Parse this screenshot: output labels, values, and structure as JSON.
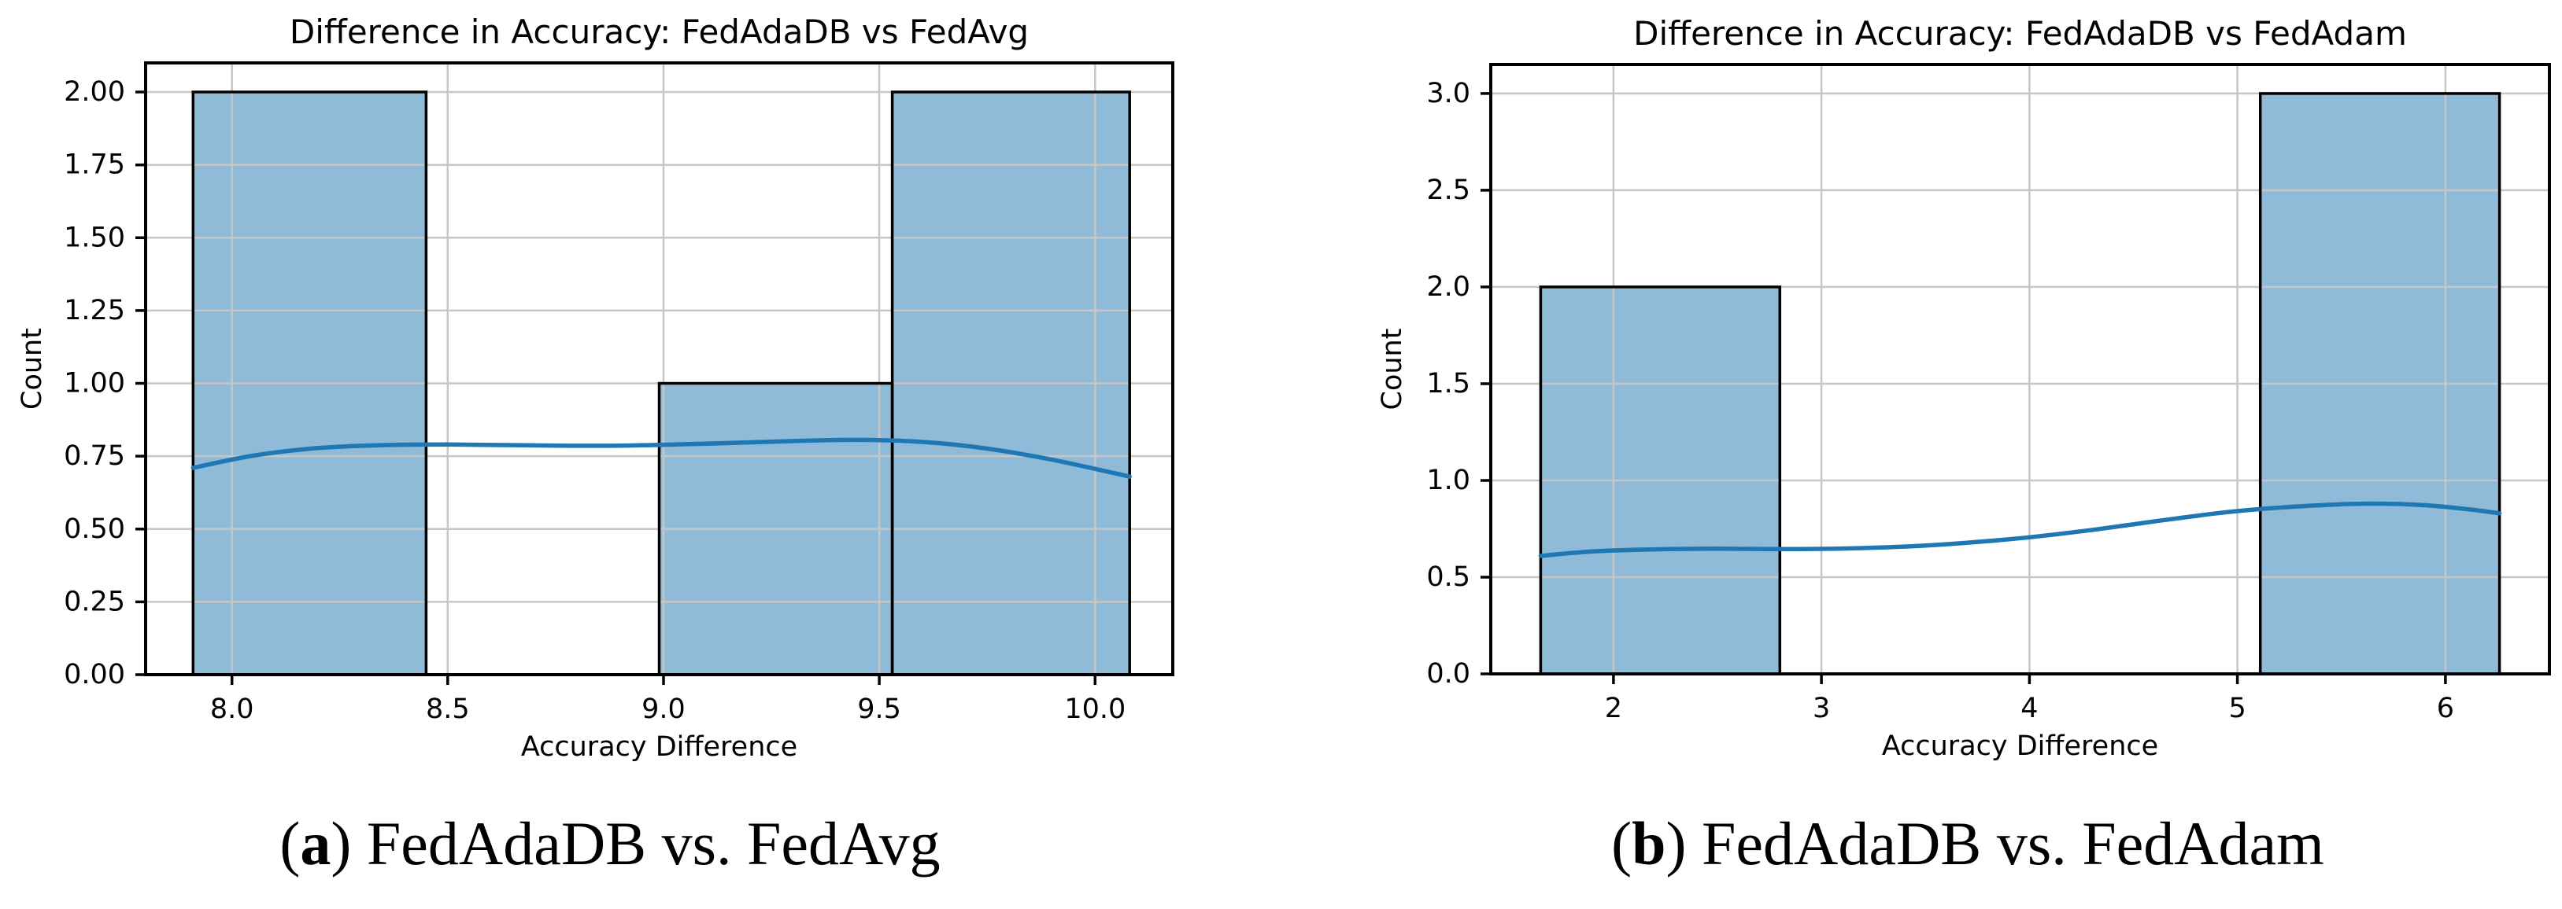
{
  "figure": {
    "captions": [
      {
        "open": "(",
        "letter": "a",
        "close": ")",
        "text": " FedAdaDB vs. FedAvg"
      },
      {
        "open": "(",
        "letter": "b",
        "close": ")",
        "text": " FedAdaDB vs. FedAdam"
      }
    ]
  },
  "colors": {
    "background": "#ffffff",
    "bar_fill_rgba": "rgba(31,119,180,0.5)",
    "bar_fill_flat": "#8fbbd9",
    "bar_edge": "#000000",
    "kde_line": "#1f77b4",
    "grid": "#c6c6c6",
    "axis": "#000000",
    "text": "#000000"
  },
  "chart_data": [
    {
      "type": "histogram+kde",
      "title": "Difference in Accuracy: FedAdaDB vs FedAvg",
      "xlabel": "Accuracy Difference",
      "ylabel": "Count",
      "grid": true,
      "legend": false,
      "xlim": [
        7.8,
        10.18
      ],
      "ylim": [
        0,
        2.1
      ],
      "xticks": [
        8.0,
        8.5,
        9.0,
        9.5,
        10.0
      ],
      "xtick_labels": [
        "8.0",
        "8.5",
        "9.0",
        "9.5",
        "10.0"
      ],
      "yticks": [
        0,
        0.25,
        0.5,
        0.75,
        1.0,
        1.25,
        1.5,
        1.75,
        2.0
      ],
      "ytick_labels": [
        "0.00",
        "0.25",
        "0.50",
        "0.75",
        "1.00",
        "1.25",
        "1.50",
        "1.75",
        "2.00"
      ],
      "histogram": {
        "bin_edges": [
          7.91,
          8.45,
          8.99,
          9.53,
          10.08
        ],
        "counts": [
          2,
          0,
          1,
          2
        ]
      },
      "kde": {
        "x": [
          7.91,
          8.05,
          8.2,
          8.35,
          8.5,
          8.7,
          8.9,
          9.1,
          9.3,
          9.45,
          9.6,
          9.75,
          9.9,
          10.08
        ],
        "y": [
          0.71,
          0.752,
          0.778,
          0.788,
          0.79,
          0.787,
          0.786,
          0.793,
          0.802,
          0.806,
          0.799,
          0.776,
          0.738,
          0.68
        ]
      }
    },
    {
      "type": "histogram+kde",
      "title": "Difference in Accuracy: FedAdaDB vs FedAdam",
      "xlabel": "Accuracy Difference",
      "ylabel": "Count",
      "grid": true,
      "legend": false,
      "xlim": [
        1.41,
        6.5
      ],
      "ylim": [
        0,
        3.15
      ],
      "xticks": [
        2,
        3,
        4,
        5,
        6
      ],
      "xtick_labels": [
        "2",
        "3",
        "4",
        "5",
        "6"
      ],
      "yticks": [
        0,
        0.5,
        1.0,
        1.5,
        2.0,
        2.5,
        3.0
      ],
      "ytick_labels": [
        "0.0",
        "0.5",
        "1.0",
        "1.5",
        "2.0",
        "2.5",
        "3.0"
      ],
      "histogram": {
        "bin_edges": [
          1.65,
          2.8,
          3.95,
          5.11,
          6.26
        ],
        "counts": [
          2,
          0,
          0,
          3
        ]
      },
      "kde": {
        "x": [
          1.65,
          1.9,
          2.2,
          2.5,
          2.8,
          3.1,
          3.4,
          3.7,
          4.0,
          4.3,
          4.6,
          4.9,
          5.11,
          5.4,
          5.65,
          5.9,
          6.1,
          6.26
        ],
        "y": [
          0.61,
          0.633,
          0.644,
          0.647,
          0.645,
          0.648,
          0.658,
          0.678,
          0.706,
          0.744,
          0.788,
          0.83,
          0.852,
          0.872,
          0.88,
          0.872,
          0.852,
          0.83
        ]
      }
    }
  ]
}
